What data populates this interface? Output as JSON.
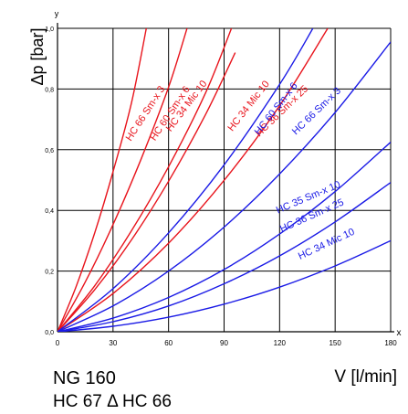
{
  "chart_data": {
    "type": "line",
    "ylabel": "Δp [bar]",
    "xlabel": "V [l/min]",
    "x_axis_letter": "x",
    "y_axis_letter": "y",
    "xlim": [
      0,
      180
    ],
    "ylim": [
      0,
      1.0
    ],
    "x_ticks": [
      "0",
      "30",
      "60",
      "90",
      "120",
      "150",
      "180"
    ],
    "y_ticks": [
      "0,0",
      "0,2",
      "0,4",
      "0,6",
      "0,8",
      "1,0"
    ],
    "grid": true,
    "caption_line1": "NG 160",
    "caption_line2": "HC 67 Δ HC 66",
    "colors": {
      "red_series": "#e8141c",
      "blue_series": "#1a1ae6",
      "grid": "#000000"
    },
    "series": [
      {
        "name": "HC 66 Sm-x 3",
        "color": "#e8141c",
        "x": [
          0,
          10,
          20,
          30,
          40,
          48
        ],
        "y": [
          0,
          0.148,
          0.324,
          0.527,
          0.755,
          1.0
        ]
      },
      {
        "name": "HC 60 Sm-x 6",
        "color": "#e8141c",
        "x": [
          0,
          15,
          30,
          45,
          60,
          70
        ],
        "y": [
          0,
          0.164,
          0.353,
          0.567,
          0.806,
          1.0
        ]
      },
      {
        "name": "HC 34 Mic 10",
        "color": "#e8141c",
        "x": [
          0,
          20,
          40,
          60,
          80,
          94
        ],
        "y": [
          0,
          0.151,
          0.333,
          0.544,
          0.787,
          1.0
        ]
      },
      {
        "name": "HC 34 Mic 10",
        "color": "#e8141c",
        "x": [
          0,
          20,
          40,
          60,
          80,
          96
        ],
        "y": [
          0,
          0.138,
          0.303,
          0.496,
          0.716,
          0.92
        ]
      },
      {
        "name": "HC 36 Sm-x 25",
        "color": "#e8141c",
        "x": [
          0,
          30,
          60,
          90,
          120,
          146
        ],
        "y": [
          0,
          0.126,
          0.292,
          0.499,
          0.745,
          1.0
        ]
      },
      {
        "name": "HC 66 Sm-x 3",
        "color": "#1a1ae6",
        "x": [
          0,
          30,
          60,
          90,
          120,
          138
        ],
        "y": [
          0,
          0.142,
          0.326,
          0.55,
          0.815,
          1.0
        ]
      },
      {
        "name": "HC 60 Sm-x 6",
        "color": "#1a1ae6",
        "x": [
          0,
          30,
          60,
          90,
          120,
          150,
          180
        ],
        "y": [
          0,
          0.085,
          0.2,
          0.345,
          0.52,
          0.723,
          0.955
        ]
      },
      {
        "name": "HC 35 Sm-x 10",
        "color": "#1a1ae6",
        "x": [
          0,
          30,
          60,
          90,
          120,
          150,
          180
        ],
        "y": [
          0,
          0.045,
          0.113,
          0.205,
          0.322,
          0.462,
          0.625
        ]
      },
      {
        "name": "HC 36 Sm-x 25",
        "color": "#1a1ae6",
        "x": [
          0,
          30,
          60,
          90,
          120,
          150,
          180
        ],
        "y": [
          0,
          0.033,
          0.085,
          0.158,
          0.25,
          0.362,
          0.492
        ]
      },
      {
        "name": "HC 34 Mic 10",
        "color": "#1a1ae6",
        "x": [
          0,
          30,
          60,
          90,
          120,
          150,
          180
        ],
        "y": [
          0,
          0.018,
          0.048,
          0.091,
          0.147,
          0.217,
          0.3
        ]
      }
    ]
  }
}
